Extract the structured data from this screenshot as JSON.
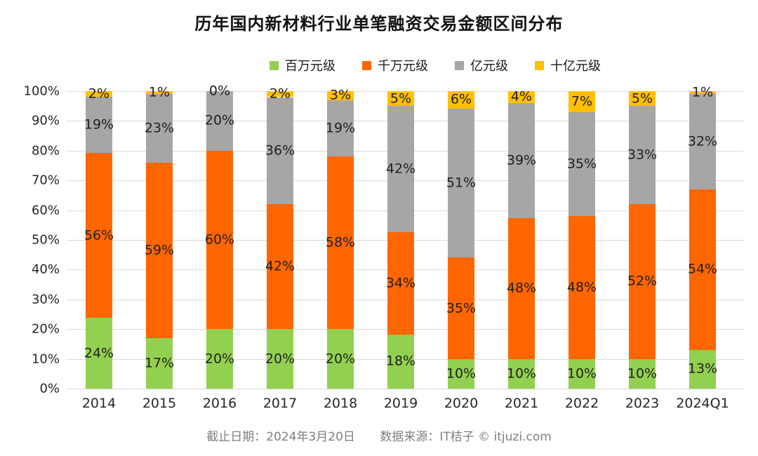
{
  "title": "历年国内新材料行业单笔融资交易金额区间分布",
  "footer": {
    "deadline": "截止日期：2024年3月20日",
    "source": "数据来源：IT桔子 © itjuzi.com"
  },
  "colors": {
    "grid": "#d9d9d9",
    "label_text": "#1f1f1f",
    "axis_text": "#262626",
    "footer_text": "#7f7f7f"
  },
  "chart_data": {
    "type": "bar",
    "stacked": true,
    "percent_stacked": true,
    "grid": true,
    "legend_position": "top",
    "value_suffix": "%",
    "ylim": [
      0,
      100
    ],
    "y_ticks": [
      "0%",
      "10%",
      "20%",
      "30%",
      "40%",
      "50%",
      "60%",
      "70%",
      "80%",
      "90%",
      "100%"
    ],
    "categories": [
      "2014",
      "2015",
      "2016",
      "2017",
      "2018",
      "2019",
      "2020",
      "2021",
      "2022",
      "2023",
      "2024Q1"
    ],
    "series": [
      {
        "name": "百万元级",
        "color": "#92d050",
        "values": [
          24,
          17,
          20,
          20,
          20,
          18,
          10,
          10,
          10,
          10,
          13
        ]
      },
      {
        "name": "千万元级",
        "color": "#ff6600",
        "values": [
          56,
          59,
          60,
          42,
          58,
          34,
          35,
          48,
          48,
          52,
          54
        ]
      },
      {
        "name": "亿元级",
        "color": "#a6a6a6",
        "values": [
          19,
          23,
          20,
          36,
          19,
          42,
          51,
          39,
          35,
          33,
          32
        ]
      },
      {
        "name": "十亿元级",
        "color": "#ffc000",
        "values": [
          2,
          1,
          0,
          2,
          3,
          5,
          6,
          4,
          7,
          5,
          1
        ]
      }
    ]
  }
}
